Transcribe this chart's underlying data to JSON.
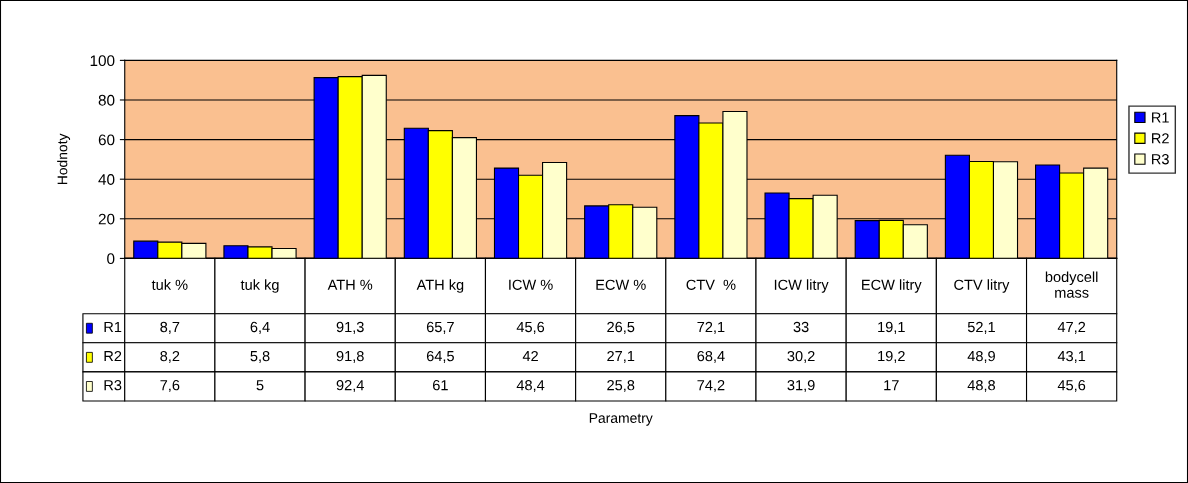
{
  "chart_data": {
    "type": "bar",
    "ylabel": "Hodnoty",
    "annotations": [
      "Parametry"
    ],
    "categories": [
      "tuk %",
      "tuk kg",
      "ATH %",
      "ATH kg",
      "ICW %",
      "ECW %",
      "CTV  %",
      "ICW litry",
      "ECW litry",
      "CTV litry",
      "bodycell mass"
    ],
    "series": [
      {
        "name": "R1",
        "color": "#0000ff",
        "values": [
          8.7,
          6.4,
          91.3,
          65.7,
          45.6,
          26.5,
          72.1,
          33,
          19.1,
          52.1,
          47.2
        ],
        "value_labels": [
          "8,7",
          "6,4",
          "91,3",
          "65,7",
          "45,6",
          "26,5",
          "72,1",
          "33",
          "19,1",
          "52,1",
          "47,2"
        ]
      },
      {
        "name": "R2",
        "color": "#ffff00",
        "values": [
          8.2,
          5.8,
          91.8,
          64.5,
          42,
          27.1,
          68.4,
          30.2,
          19.2,
          48.9,
          43.1
        ],
        "value_labels": [
          "8,2",
          "5,8",
          "91,8",
          "64,5",
          "42",
          "27,1",
          "68,4",
          "30,2",
          "19,2",
          "48,9",
          "43,1"
        ]
      },
      {
        "name": "R3",
        "color": "#ffffcc",
        "values": [
          7.6,
          5,
          92.4,
          61,
          48.4,
          25.8,
          74.2,
          31.9,
          17,
          48.8,
          45.6
        ],
        "value_labels": [
          "7,6",
          "5",
          "92,4",
          "61",
          "48,4",
          "25,8",
          "74,2",
          "31,9",
          "17",
          "48,8",
          "45,6"
        ]
      }
    ],
    "ylim": [
      0,
      100
    ],
    "yticks": [
      0,
      20,
      40,
      60,
      80,
      100
    ],
    "grid": "y",
    "legend": "right"
  }
}
